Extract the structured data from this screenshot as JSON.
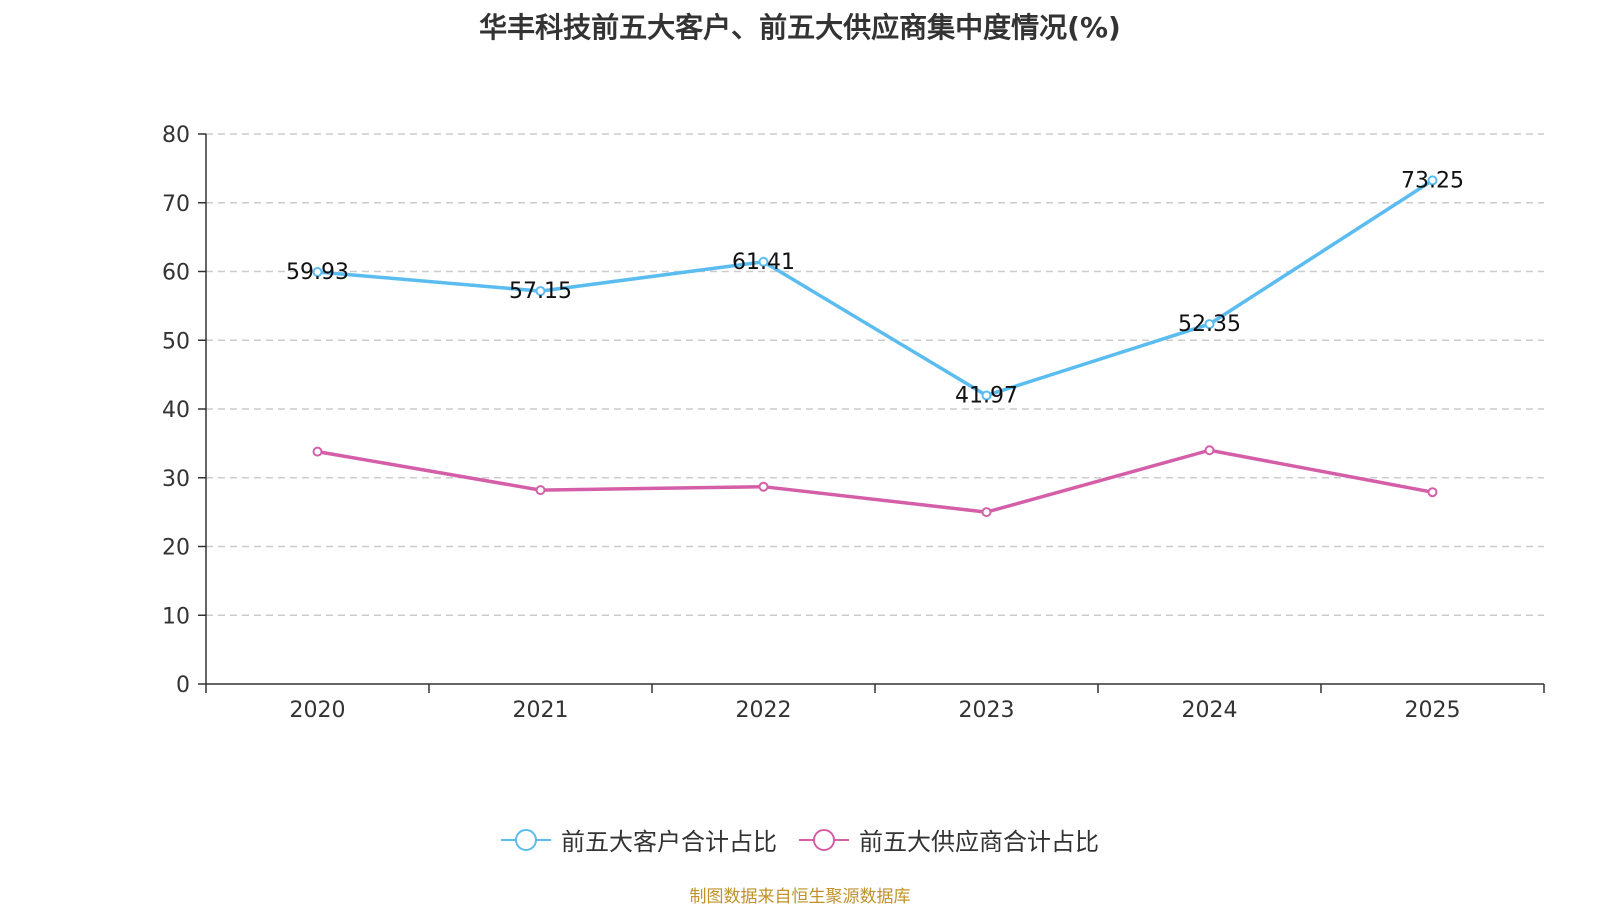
{
  "chart_data": {
    "type": "line",
    "title": "华丰科技前五大客户、前五大供应商集中度情况(%)",
    "categories": [
      "2020",
      "2021",
      "2022",
      "2023",
      "2024",
      "2025"
    ],
    "ylim": [
      0,
      80
    ],
    "yticks": [
      0,
      10,
      20,
      30,
      40,
      50,
      60,
      70,
      80
    ],
    "grid": "dashed-horizontal",
    "series": [
      {
        "name": "前五大客户合计占比",
        "color": "#5bbcf0",
        "values": [
          59.93,
          57.15,
          61.41,
          41.97,
          52.35,
          73.25
        ],
        "show_labels": true
      },
      {
        "name": "前五大供应商合计占比",
        "color": "#d45fa8",
        "values": [
          33.8,
          28.2,
          28.7,
          25.0,
          34.0,
          27.9
        ],
        "show_labels": false
      }
    ],
    "legend_position": "bottom-center",
    "source": "制图数据来自恒生聚源数据库"
  }
}
